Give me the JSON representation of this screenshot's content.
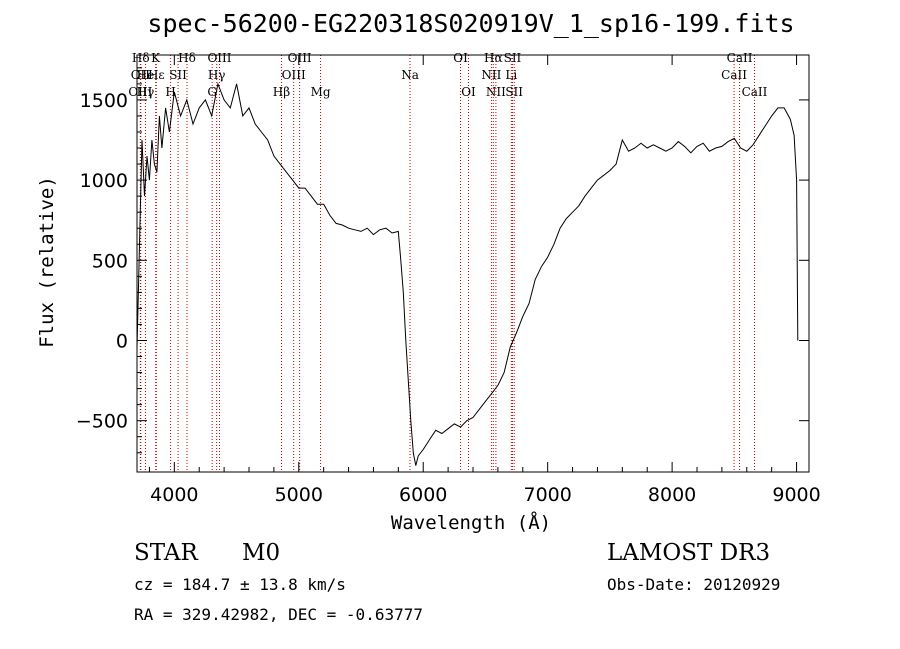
{
  "chart_data": {
    "type": "line",
    "title": "spec-56200-EG220318S020919V_1_sp16-199.fits",
    "xlabel": "Wavelength (Å)",
    "ylabel": "Flux (relative)",
    "xlim": [
      3700,
      9100
    ],
    "ylim": [
      -820,
      1780
    ],
    "xticks": [
      4000,
      5000,
      6000,
      7000,
      8000,
      9000
    ],
    "yticks": [
      -500,
      0,
      500,
      1000,
      1500
    ],
    "series": [
      {
        "name": "spectrum",
        "x": [
          3700,
          3720,
          3740,
          3760,
          3780,
          3800,
          3820,
          3840,
          3860,
          3880,
          3900,
          3930,
          3960,
          4000,
          4050,
          4100,
          4150,
          4200,
          4250,
          4300,
          4350,
          4400,
          4450,
          4500,
          4550,
          4600,
          4650,
          4700,
          4750,
          4800,
          4850,
          4900,
          4950,
          5000,
          5050,
          5100,
          5150,
          5200,
          5250,
          5300,
          5350,
          5400,
          5450,
          5500,
          5550,
          5600,
          5650,
          5700,
          5750,
          5800,
          5820,
          5840,
          5860,
          5880,
          5900,
          5920,
          5940,
          5960,
          6000,
          6050,
          6100,
          6150,
          6200,
          6250,
          6300,
          6350,
          6400,
          6450,
          6500,
          6550,
          6600,
          6650,
          6700,
          6750,
          6800,
          6850,
          6900,
          6950,
          7000,
          7050,
          7100,
          7150,
          7200,
          7250,
          7300,
          7350,
          7400,
          7450,
          7500,
          7550,
          7600,
          7650,
          7700,
          7750,
          7800,
          7850,
          7900,
          7950,
          8000,
          8050,
          8100,
          8150,
          8200,
          8250,
          8300,
          8350,
          8400,
          8450,
          8500,
          8550,
          8600,
          8650,
          8700,
          8750,
          8800,
          8850,
          8900,
          8950,
          8980,
          9000,
          9010
        ],
        "values": [
          -50,
          600,
          1250,
          900,
          1150,
          1000,
          1250,
          1100,
          1050,
          1400,
          1200,
          1450,
          1300,
          1550,
          1400,
          1500,
          1350,
          1450,
          1500,
          1400,
          1600,
          1500,
          1450,
          1600,
          1400,
          1450,
          1350,
          1300,
          1250,
          1150,
          1100,
          1050,
          1000,
          950,
          950,
          900,
          850,
          850,
          780,
          730,
          720,
          700,
          690,
          680,
          700,
          660,
          690,
          700,
          670,
          680,
          500,
          300,
          0,
          -250,
          -500,
          -700,
          -780,
          -720,
          -680,
          -620,
          -560,
          -580,
          -550,
          -520,
          -540,
          -500,
          -480,
          -430,
          -380,
          -330,
          -280,
          -200,
          -40,
          50,
          150,
          230,
          380,
          460,
          520,
          600,
          700,
          760,
          800,
          840,
          900,
          950,
          1000,
          1030,
          1060,
          1100,
          1250,
          1180,
          1200,
          1230,
          1200,
          1220,
          1200,
          1180,
          1200,
          1240,
          1210,
          1170,
          1210,
          1230,
          1180,
          1200,
          1210,
          1240,
          1260,
          1200,
          1180,
          1220,
          1280,
          1340,
          1400,
          1450,
          1450,
          1380,
          1280,
          1000,
          0
        ]
      }
    ],
    "lines": [
      {
        "label": "Hδ",
        "wl": 3730,
        "row": 1
      },
      {
        "label": "OII",
        "wl": 3727,
        "row": 2
      },
      {
        "label": "OIII",
        "wl": 3727,
        "row": 3
      },
      {
        "label": "He",
        "wl": 3768,
        "row": 2
      },
      {
        "label": "Hγ",
        "wl": 3768,
        "row": 3
      },
      {
        "label": "K",
        "wl": 3850,
        "row": 1
      },
      {
        "label": "Hε",
        "wl": 3855,
        "row": 2
      },
      {
        "label": "H",
        "wl": 3970,
        "row": 3
      },
      {
        "label": "Hδ",
        "wl": 4102,
        "row": 1
      },
      {
        "label": "SII",
        "wl": 4030,
        "row": 2
      },
      {
        "label": "OIII",
        "wl": 4363,
        "row": 1
      },
      {
        "label": "Hγ",
        "wl": 4340,
        "row": 2
      },
      {
        "label": "G",
        "wl": 4304,
        "row": 3
      },
      {
        "label": "OIII",
        "wl": 5007,
        "row": 1
      },
      {
        "label": "OIII",
        "wl": 4959,
        "row": 2
      },
      {
        "label": "Hβ",
        "wl": 4861,
        "row": 3
      },
      {
        "label": "Mg",
        "wl": 5175,
        "row": 3
      },
      {
        "label": "Na",
        "wl": 5894,
        "row": 2
      },
      {
        "label": "OI",
        "wl": 6300,
        "row": 1
      },
      {
        "label": "OI",
        "wl": 6364,
        "row": 3
      },
      {
        "label": "Hα",
        "wl": 6563,
        "row": 1
      },
      {
        "label": "NII",
        "wl": 6548,
        "row": 2
      },
      {
        "label": "NII",
        "wl": 6584,
        "row": 3
      },
      {
        "label": "SII",
        "wl": 6717,
        "row": 1
      },
      {
        "label": "Li",
        "wl": 6708,
        "row": 2
      },
      {
        "label": "SII",
        "wl": 6731,
        "row": 3
      },
      {
        "label": "CaII",
        "wl": 8542,
        "row": 1
      },
      {
        "label": "CaII",
        "wl": 8498,
        "row": 2
      },
      {
        "label": "CaII",
        "wl": 8662,
        "row": 3
      }
    ]
  },
  "info": {
    "object_class": "STAR",
    "subclass": "M0",
    "survey": "LAMOST DR3",
    "cz": "cz = 184.7 ± 13.8 km/s",
    "obs_date": "Obs-Date: 20120929",
    "coords": "RA = 329.42982, DEC =  -0.63777"
  },
  "colors": {
    "line_marker": "#c00000",
    "spectrum": "#000000"
  }
}
